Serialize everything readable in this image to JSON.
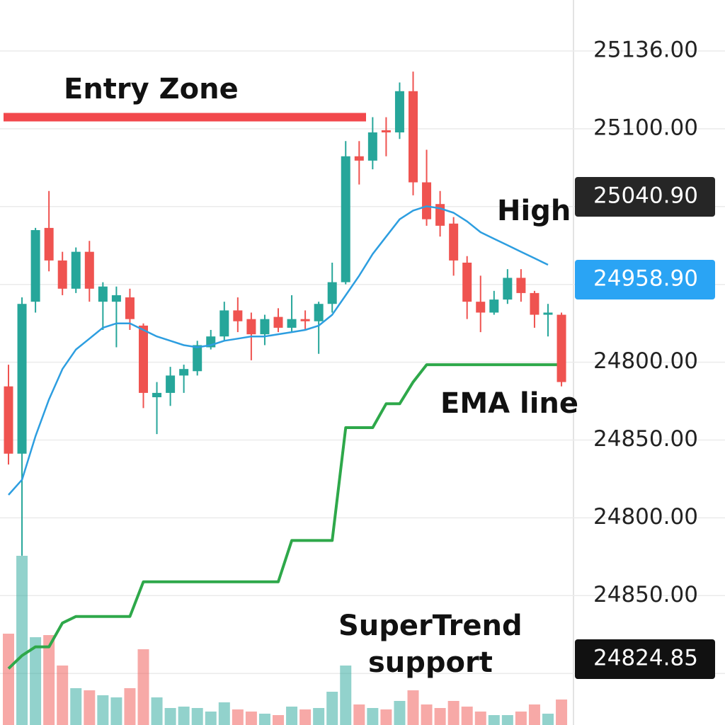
{
  "chart_data": {
    "type": "candlestick",
    "annotations": {
      "entry": "Entry Zone",
      "high": "High",
      "ema": "EMA line",
      "supertrend": [
        "SuperTrend",
        "support"
      ]
    },
    "entry_zone_level": 25106,
    "entry_zone_color": "#f2484c",
    "ylim": [
      24826,
      25160
    ],
    "grid": true,
    "axis_labels": [
      "25136.00",
      "25100.00",
      null,
      null,
      "24800.00",
      "24850.00",
      "24800.00",
      "24850.00",
      null
    ],
    "price_tags": [
      {
        "label": "25040.90",
        "color": "#262626"
      },
      {
        "label": "24958.90",
        "color": "#2aa4f4"
      },
      {
        "label": "24824.85",
        "color": "#111111"
      }
    ],
    "up_color": "#26a69a",
    "down_color": "#ef5350",
    "open": [
      24982,
      24951,
      25021,
      25055,
      25040,
      25027,
      25044,
      25021,
      25021,
      25023,
      25010,
      24977,
      24979,
      24987,
      24989,
      25000,
      25005,
      25017,
      25013,
      25006,
      25014,
      25009,
      25013,
      25012,
      25020,
      25030,
      25088,
      25086,
      25100,
      25099,
      25118,
      25076,
      25066,
      25057,
      25039,
      25021,
      25016,
      25022,
      25032,
      25025,
      25015,
      25015
    ],
    "high": [
      24992,
      25023,
      25055,
      25072,
      25044,
      25046,
      25049,
      25030,
      25028,
      25027,
      25011,
      24984,
      24991,
      24992,
      25003,
      25008,
      25021,
      25023,
      25016,
      25015,
      25018,
      25024,
      25017,
      25021,
      25039,
      25095,
      25095,
      25106,
      25106,
      25122,
      25127,
      25091,
      25072,
      25060,
      25042,
      25033,
      25026,
      25036,
      25036,
      25026,
      25020,
      25016
    ],
    "low": [
      24946,
      24904,
      25016,
      25035,
      25024,
      25025,
      25021,
      25008,
      25000,
      25008,
      24972,
      24960,
      24973,
      24979,
      24987,
      24999,
      25003,
      25007,
      24994,
      25001,
      25007,
      25007,
      25008,
      24997,
      25016,
      25029,
      25075,
      25082,
      25088,
      25096,
      25070,
      25056,
      25051,
      25033,
      25013,
      25007,
      25015,
      25020,
      25021,
      25009,
      25005,
      24982
    ],
    "close": [
      24951,
      25020,
      25054,
      25040,
      25027,
      25044,
      25027,
      25028,
      25024,
      25013,
      24979,
      24979,
      24987,
      24990,
      25001,
      25005,
      25017,
      25012,
      25006,
      25013,
      25009,
      25013,
      25012,
      25020,
      25030,
      25088,
      25086,
      25099,
      25099,
      25118,
      25076,
      25059,
      25056,
      25040,
      25021,
      25016,
      25022,
      25032,
      25025,
      25015,
      25016,
      24984
    ],
    "volume": [
      129,
      239,
      124,
      127,
      84,
      52,
      49,
      42,
      39,
      52,
      107,
      39,
      24,
      26,
      24,
      19,
      32,
      22,
      19,
      16,
      14,
      26,
      22,
      24,
      47,
      84,
      29,
      24,
      22,
      34,
      49,
      29,
      24,
      34,
      26,
      19,
      14,
      14,
      19,
      29,
      16,
      36
    ],
    "volume_lim": [
      0,
      1024
    ],
    "ema": {
      "color": "#2d9ee0",
      "values": [
        24932,
        24939,
        24959,
        24976,
        24990,
        24999,
        25004,
        25009,
        25011,
        25011,
        25008,
        25005,
        25003,
        25001,
        25000,
        25001,
        25003,
        25004,
        25005,
        25005,
        25006,
        25007,
        25008,
        25010,
        25015,
        25024,
        25033,
        25043,
        25051,
        25059,
        25063,
        25065,
        25064,
        25062,
        25058,
        25053,
        25050,
        25047,
        25044,
        25041,
        25038,
        null
      ]
    },
    "supertrend": {
      "color": "#2ea84a",
      "values": [
        24852,
        24858,
        24862,
        24862,
        24873,
        24876,
        24876,
        24876,
        24876,
        24876,
        24892,
        24892,
        24892,
        24892,
        24892,
        24892,
        24892,
        24892,
        24892,
        24892,
        24892,
        24911,
        24911,
        24911,
        24911,
        24963,
        24963,
        24963,
        24974,
        24974,
        24984,
        24992,
        24992,
        24992,
        24992,
        24992,
        24992,
        24992,
        24992,
        24992,
        24992,
        24992
      ]
    }
  }
}
